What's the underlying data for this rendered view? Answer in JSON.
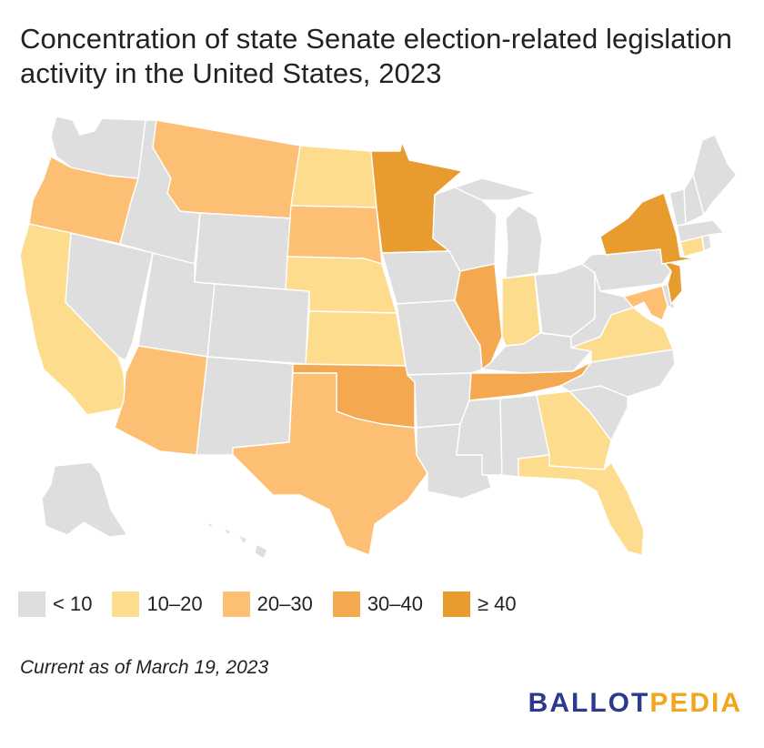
{
  "title": "Concentration of state Senate election-related legislation activity in the United States, 2023",
  "colors": {
    "lt10": "#dedede",
    "b10_20": "#fddc8e",
    "b20_30": "#fcbf73",
    "b30_40": "#f4a950",
    "ge40": "#e89b2e"
  },
  "legend": [
    {
      "label": "< 10",
      "category": "lt10"
    },
    {
      "label": "10–20",
      "category": "b10_20"
    },
    {
      "label": "20–30",
      "category": "b20_30"
    },
    {
      "label": "30–40",
      "category": "b30_40"
    },
    {
      "label": "≥ 40",
      "category": "ge40"
    }
  ],
  "states": {
    "WA": "lt10",
    "OR": "b20_30",
    "CA": "b10_20",
    "NV": "lt10",
    "ID": "lt10",
    "MT": "b20_30",
    "WY": "lt10",
    "UT": "lt10",
    "CO": "lt10",
    "AZ": "b20_30",
    "NM": "lt10",
    "ND": "b10_20",
    "SD": "b20_30",
    "NE": "b10_20",
    "KS": "b10_20",
    "OK": "b30_40",
    "TX": "b20_30",
    "MN": "ge40",
    "IA": "lt10",
    "MO": "lt10",
    "AR": "lt10",
    "LA": "lt10",
    "WI": "lt10",
    "IL": "b30_40",
    "MI": "lt10",
    "IN": "b10_20",
    "OH": "lt10",
    "KY": "lt10",
    "TN": "b30_40",
    "MS": "lt10",
    "AL": "lt10",
    "GA": "b10_20",
    "FL": "b10_20",
    "SC": "lt10",
    "NC": "lt10",
    "VA": "b10_20",
    "WV": "lt10",
    "PA": "lt10",
    "NY": "ge40",
    "NJ": "ge40",
    "MD": "b20_30",
    "DE": "lt10",
    "CT": "b10_20",
    "RI": "lt10",
    "MA": "lt10",
    "VT": "lt10",
    "NH": "lt10",
    "ME": "lt10",
    "AK": "lt10",
    "HI": "lt10"
  },
  "footnote": "Current as of March 19, 2023",
  "logo": {
    "part1": "BALLOT",
    "part2": "PEDIA"
  }
}
